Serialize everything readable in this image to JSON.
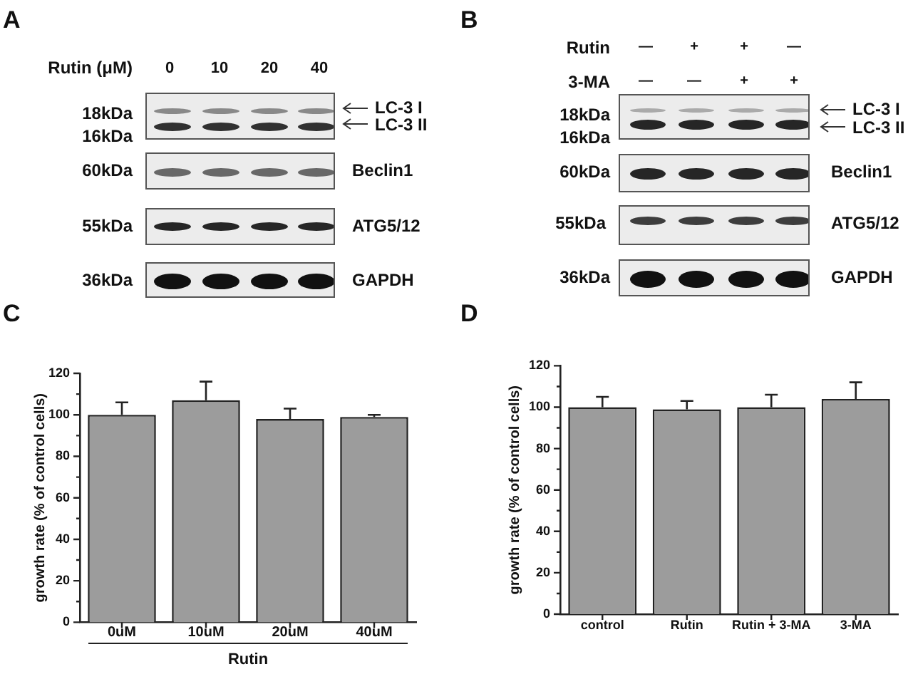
{
  "chart_data": [
    {
      "type": "other",
      "title": "A",
      "annotations": [
        "Rutin (μM)",
        "0",
        "10",
        "20",
        "40",
        "18kDa",
        "16kDa",
        "LC-3 I",
        "LC-3 II",
        "60kDa",
        "Beclin1",
        "55kDa",
        "ATG5/12",
        "36kDa",
        "GAPDH"
      ]
    },
    {
      "type": "other",
      "title": "B",
      "annotations": [
        "Rutin",
        "—",
        "+",
        "+",
        "—",
        "3-MA",
        "—",
        "—",
        "+",
        "+",
        "18kDa",
        "16kDa",
        "LC-3 I",
        "LC-3 II",
        "60kDa",
        "Beclin1",
        "55kDa",
        "ATG5/12",
        "36kDa",
        "GAPDH"
      ]
    },
    {
      "type": "bar",
      "title": "C",
      "categories": [
        "0uM",
        "10uM",
        "20uM",
        "40uM"
      ],
      "values": [
        100,
        107,
        98,
        99
      ],
      "errors": [
        [
          100,
          106
        ],
        [
          107,
          116
        ],
        [
          98,
          103
        ],
        [
          99,
          100
        ]
      ],
      "color": "#9c9c9c",
      "xlabel": "Rutin",
      "ylabel": "growth rate (% of control cells)",
      "ylim": [
        0,
        120
      ],
      "yticks": [
        0,
        {
          "value": 10,
          "label": null
        },
        20,
        {
          "value": 30,
          "label": null
        },
        40,
        {
          "value": 50,
          "label": null
        },
        60,
        {
          "value": 70,
          "label": null
        },
        80,
        {
          "value": 90,
          "label": null
        },
        100,
        {
          "value": 110,
          "label": null
        },
        120
      ]
    },
    {
      "type": "bar",
      "title": "D",
      "categories": [
        "control",
        "Rutin",
        "Rutin + 3-MA",
        "3-MA"
      ],
      "values": [
        100,
        99,
        100,
        104
      ],
      "errors": [
        [
          100,
          105
        ],
        [
          99,
          103
        ],
        [
          100,
          106
        ],
        [
          104,
          112
        ]
      ],
      "color": "#9c9c9c",
      "ylabel": "growth rate (% of control cells)",
      "ylim": [
        0,
        120
      ],
      "yticks": [
        0,
        {
          "value": 10,
          "label": null
        },
        20,
        {
          "value": 30,
          "label": null
        },
        40,
        {
          "value": 50,
          "label": null
        },
        60,
        {
          "value": 70,
          "label": null
        },
        80,
        {
          "value": 90,
          "label": null
        },
        100,
        {
          "value": 110,
          "label": null
        },
        120
      ]
    }
  ]
}
